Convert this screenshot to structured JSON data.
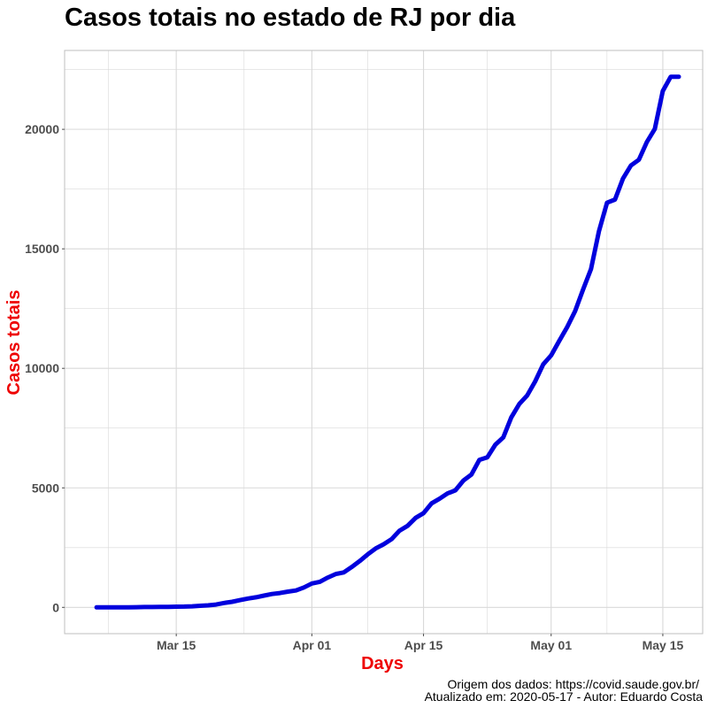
{
  "chart_data": {
    "type": "line",
    "title": "Casos totais no estado de RJ por dia",
    "xlabel": "Days",
    "ylabel": "Casos totais",
    "x_ticks": [
      {
        "date": "2020-03-15",
        "label": "Mar 15"
      },
      {
        "date": "2020-04-01",
        "label": "Apr 01"
      },
      {
        "date": "2020-04-15",
        "label": "Apr 15"
      },
      {
        "date": "2020-05-01",
        "label": "May 01"
      },
      {
        "date": "2020-05-15",
        "label": "May 15"
      }
    ],
    "y_ticks": [
      0,
      5000,
      10000,
      15000,
      20000
    ],
    "xlim": [
      "2020-03-01",
      "2020-05-20"
    ],
    "ylim": [
      -1100,
      23300
    ],
    "grid": true,
    "colors": {
      "line": "#0000dd",
      "axis_title": "#ee0000",
      "grid": "#d9d9d9",
      "panel_border": "#bfbfbf"
    },
    "series": [
      {
        "x": [
          "2020-03-05",
          "2020-03-06",
          "2020-03-07",
          "2020-03-08",
          "2020-03-09",
          "2020-03-10",
          "2020-03-11",
          "2020-03-12",
          "2020-03-13",
          "2020-03-14",
          "2020-03-15",
          "2020-03-16",
          "2020-03-17",
          "2020-03-18",
          "2020-03-19",
          "2020-03-20",
          "2020-03-21",
          "2020-03-22",
          "2020-03-23",
          "2020-03-24",
          "2020-03-25",
          "2020-03-26",
          "2020-03-27",
          "2020-03-28",
          "2020-03-29",
          "2020-03-30",
          "2020-03-31",
          "2020-04-01",
          "2020-04-02",
          "2020-04-03",
          "2020-04-04",
          "2020-04-05",
          "2020-04-06",
          "2020-04-07",
          "2020-04-08",
          "2020-04-09",
          "2020-04-10",
          "2020-04-11",
          "2020-04-12",
          "2020-04-13",
          "2020-04-14",
          "2020-04-15",
          "2020-04-16",
          "2020-04-17",
          "2020-04-18",
          "2020-04-19",
          "2020-04-20",
          "2020-04-21",
          "2020-04-22",
          "2020-04-23",
          "2020-04-24",
          "2020-04-25",
          "2020-04-26",
          "2020-04-27",
          "2020-04-28",
          "2020-04-29",
          "2020-04-30",
          "2020-05-01",
          "2020-05-02",
          "2020-05-03",
          "2020-05-04",
          "2020-05-05",
          "2020-05-06",
          "2020-05-07",
          "2020-05-08",
          "2020-05-09",
          "2020-05-10",
          "2020-05-11",
          "2020-05-12",
          "2020-05-13",
          "2020-05-14",
          "2020-05-15",
          "2020-05-16",
          "2020-05-17"
        ],
        "values": [
          1,
          1,
          1,
          2,
          3,
          8,
          13,
          16,
          19,
          22,
          31,
          33,
          45,
          65,
          86,
          119,
          186,
          233,
          305,
          370,
          421,
          493,
          558,
          600,
          657,
          708,
          832,
          1000,
          1070,
          1246,
          1394,
          1461,
          1688,
          1938,
          2216,
          2464,
          2640,
          2855,
          3210,
          3410,
          3743,
          3944,
          4349,
          4543,
          4765,
          4899,
          5306,
          5552,
          6172,
          6278,
          6805,
          7111,
          7944,
          8504,
          8869,
          9453,
          10166,
          10546,
          11139,
          11721,
          12391,
          13295,
          14156,
          15741,
          16929,
          17062,
          17939,
          18486,
          18728,
          19467,
          20016,
          21601,
          22200,
          22200
        ]
      }
    ]
  },
  "caption": {
    "source": "Origem dos dados: https://covid.saude.gov.br/",
    "updated": "Atualizado em: 2020-05-17    -  Autor: Eduardo Costa"
  }
}
